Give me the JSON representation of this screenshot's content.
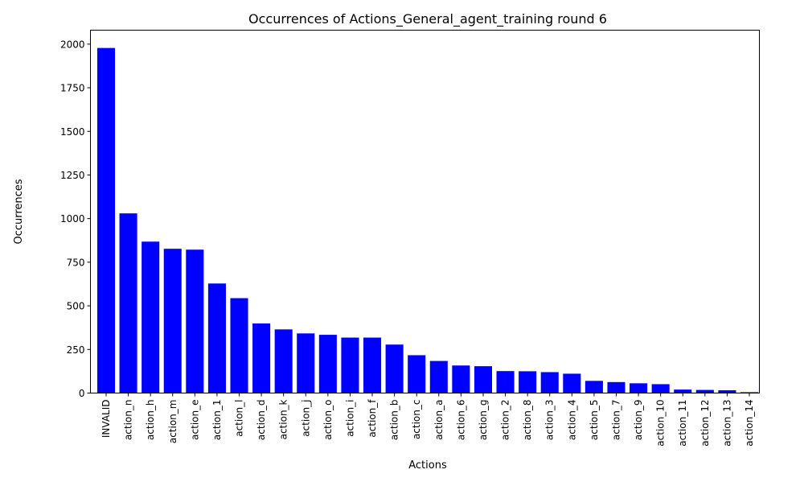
{
  "chart_data": {
    "type": "bar",
    "title": "Occurrences of Actions_General_agent_training round 6",
    "xlabel": "Actions",
    "ylabel": "Occurrences",
    "ylim": [
      0,
      2080
    ],
    "yticks": [
      0,
      250,
      500,
      750,
      1000,
      1250,
      1500,
      1750,
      2000
    ],
    "ytick_labels": [
      "0",
      "250",
      "500",
      "750",
      "1000",
      "1250",
      "1500",
      "1750",
      "2000"
    ],
    "grid": false,
    "legend": "none",
    "bar_color": "#0000ff",
    "categories": [
      "INVALID",
      "action_n",
      "action_h",
      "action_m",
      "action_e",
      "action_1",
      "action_l",
      "action_d",
      "action_k",
      "action_j",
      "action_o",
      "action_i",
      "action_f",
      "action_b",
      "action_c",
      "action_a",
      "action_6",
      "action_g",
      "action_2",
      "action_8",
      "action_3",
      "action_4",
      "action_5",
      "action_7",
      "action_9",
      "action_10",
      "action_11",
      "action_12",
      "action_13",
      "action_14"
    ],
    "values": [
      1978,
      1030,
      868,
      827,
      822,
      628,
      544,
      399,
      365,
      342,
      334,
      318,
      318,
      278,
      217,
      184,
      158,
      154,
      126,
      125,
      120,
      111,
      70,
      63,
      56,
      51,
      20,
      18,
      16,
      5
    ]
  }
}
